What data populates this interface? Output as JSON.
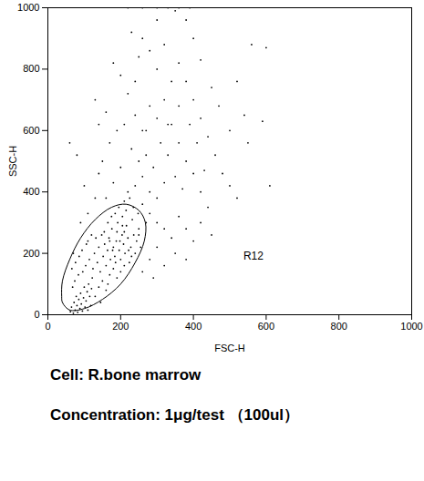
{
  "chart_data": {
    "type": "scatter",
    "x_label": "FSC-H",
    "y_label": "SSC-H",
    "xlim": [
      0,
      1000
    ],
    "ylim": [
      0,
      1000
    ],
    "xticks": [
      0,
      200,
      400,
      600,
      800,
      1000
    ],
    "yticks": [
      0,
      200,
      400,
      600,
      800,
      1000
    ],
    "grid": false,
    "color": "#000000",
    "marker": "dot",
    "x": [
      62,
      65,
      70,
      72,
      75,
      78,
      80,
      82,
      85,
      88,
      90,
      92,
      95,
      98,
      100,
      102,
      105,
      108,
      110,
      112,
      115,
      118,
      120,
      122,
      68,
      74,
      84,
      96,
      104,
      66,
      70,
      76,
      86,
      94,
      106,
      114,
      124,
      128,
      132,
      136,
      140,
      144,
      148,
      152,
      156,
      160,
      164,
      168,
      172,
      176,
      180,
      184,
      188,
      192,
      196,
      200,
      204,
      208,
      212,
      216,
      220,
      224,
      228,
      232,
      236,
      240,
      180,
      170,
      190,
      210,
      150,
      140,
      160,
      200,
      130,
      145,
      165,
      185,
      195,
      205,
      215,
      225,
      235,
      175,
      165,
      155,
      205,
      190,
      170,
      178,
      186,
      198,
      210,
      222,
      230,
      244,
      250,
      255,
      248,
      210,
      220,
      240,
      260,
      280,
      300,
      320,
      250,
      270,
      290,
      310,
      230,
      200,
      180,
      160,
      150,
      170,
      190,
      210,
      240,
      260,
      280,
      300,
      320,
      340,
      360,
      380,
      400,
      420,
      440,
      350,
      330,
      300,
      320,
      340,
      360,
      380,
      400,
      420,
      450,
      280,
      260,
      340,
      300,
      280,
      260,
      320,
      360,
      380,
      400,
      420,
      440,
      460,
      480,
      500,
      520,
      220,
      200,
      180,
      240,
      250,
      230,
      300,
      350,
      380,
      400,
      420,
      450,
      470,
      500,
      550,
      540,
      560,
      600,
      610,
      520,
      590,
      120,
      110,
      100,
      130,
      140,
      80,
      90,
      60,
      140,
      130,
      160,
      110,
      280,
      300,
      290,
      320,
      260,
      350,
      380,
      270,
      330,
      360,
      390,
      410,
      370,
      430,
      250,
      270,
      220,
      260,
      300,
      330,
      360,
      390
    ],
    "values": [
      10,
      25,
      5,
      40,
      15,
      60,
      30,
      8,
      50,
      20,
      70,
      35,
      12,
      55,
      90,
      25,
      45,
      75,
      15,
      100,
      60,
      30,
      85,
      120,
      90,
      110,
      130,
      140,
      160,
      150,
      200,
      170,
      190,
      210,
      230,
      180,
      150,
      200,
      250,
      170,
      220,
      140,
      260,
      190,
      230,
      160,
      210,
      250,
      180,
      280,
      220,
      190,
      240,
      300,
      210,
      180,
      260,
      230,
      200,
      290,
      250,
      170,
      220,
      310,
      260,
      200,
      150,
      130,
      120,
      160,
      110,
      90,
      80,
      140,
      60,
      40,
      100,
      330,
      350,
      320,
      340,
      380,
      350,
      320,
      300,
      270,
      290,
      270,
      240,
      210,
      170,
      240,
      270,
      210,
      190,
      240,
      280,
      220,
      330,
      370,
      400,
      420,
      450,
      400,
      380,
      430,
      500,
      520,
      480,
      560,
      540,
      480,
      430,
      380,
      500,
      560,
      600,
      620,
      650,
      600,
      680,
      640,
      700,
      620,
      560,
      500,
      460,
      400,
      350,
      450,
      520,
      300,
      280,
      250,
      320,
      280,
      240,
      300,
      260,
      330,
      360,
      760,
      800,
      860,
      900,
      880,
      820,
      760,
      700,
      640,
      580,
      520,
      460,
      420,
      380,
      720,
      780,
      820,
      760,
      840,
      920,
      960,
      990,
      960,
      900,
      830,
      740,
      680,
      600,
      560,
      650,
      880,
      870,
      420,
      760,
      630,
      260,
      330,
      420,
      380,
      460,
      520,
      300,
      560,
      620,
      700,
      660,
      240,
      180,
      220,
      120,
      160,
      140,
      200,
      180,
      600,
      620,
      680,
      620,
      560,
      410,
      470,
      260,
      300,
      1000,
      1000,
      1000,
      1000,
      1000,
      1000
    ],
    "gate": [
      [
        40,
        40
      ],
      [
        60,
        15
      ],
      [
        100,
        20
      ],
      [
        150,
        50
      ],
      [
        200,
        100
      ],
      [
        240,
        170
      ],
      [
        265,
        240
      ],
      [
        268,
        300
      ],
      [
        250,
        340
      ],
      [
        215,
        360
      ],
      [
        175,
        350
      ],
      [
        130,
        310
      ],
      [
        90,
        250
      ],
      [
        60,
        180
      ],
      [
        40,
        110
      ],
      [
        38,
        60
      ]
    ],
    "annotations": [
      {
        "text": "R12",
        "x": 565,
        "y": 190
      }
    ],
    "caption": [
      "Cell: R.bone marrow",
      "Concentration: 1μg/test （100ul）"
    ]
  }
}
